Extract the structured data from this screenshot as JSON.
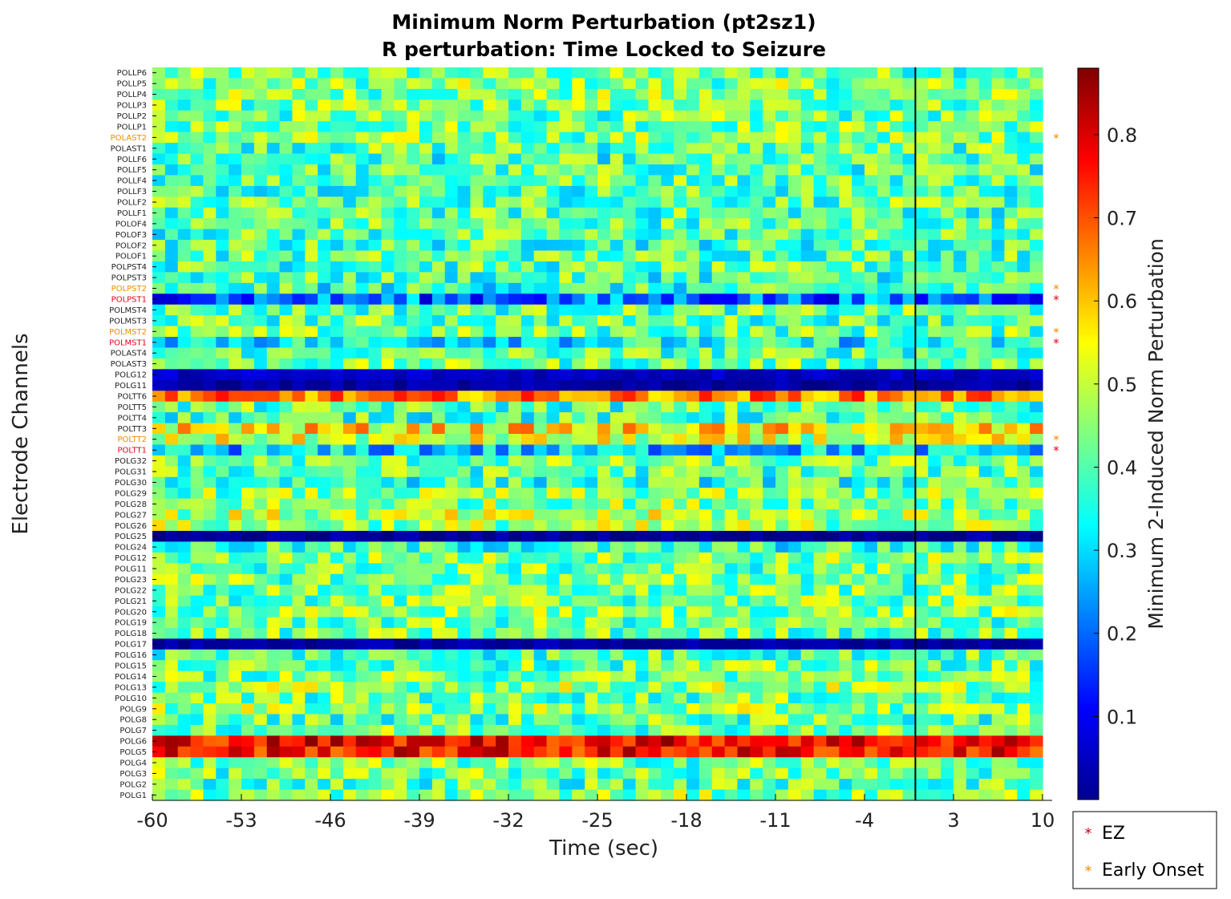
{
  "chart_data": {
    "type": "heatmap",
    "title": [
      "Minimum Norm Perturbation (pt2sz1)",
      "R perturbation:  Time Locked to Seizure"
    ],
    "xlabel": "Time (sec)",
    "ylabel": "Electrode Channels",
    "xlim": [
      -60,
      10
    ],
    "x_ticks": [
      -60,
      -53,
      -46,
      -39,
      -32,
      -25,
      -18,
      -11,
      -4,
      3,
      10
    ],
    "seizure_onset_time": 0,
    "colormap": "jet",
    "clim": [
      0,
      0.88
    ],
    "colorbar": {
      "label": "Minimum 2-Induced Norm Perturbation",
      "ticks": [
        0.1,
        0.2,
        0.3,
        0.4,
        0.5,
        0.6,
        0.7,
        0.8
      ]
    },
    "channels": [
      "POLLP6",
      "POLLP5",
      "POLLP4",
      "POLLP3",
      "POLLP2",
      "POLLP1",
      "POLAST2",
      "POLAST1",
      "POLLF6",
      "POLLF5",
      "POLLF4",
      "POLLF3",
      "POLLF2",
      "POLLF1",
      "POLOF4",
      "POLOF3",
      "POLOF2",
      "POLOF1",
      "POLPST4",
      "POLPST3",
      "POLPST2",
      "POLPST1",
      "POLMST4",
      "POLMST3",
      "POLMST2",
      "POLMST1",
      "POLAST4",
      "POLAST3",
      "POLG12",
      "POLG11",
      "POLTT6",
      "POLTT5",
      "POLTT4",
      "POLTT3",
      "POLTT2",
      "POLTT1",
      "POLG32",
      "POLG31",
      "POLG30",
      "POLG29",
      "POLG28",
      "POLG27",
      "POLG26",
      "POLG25",
      "POLG24",
      "POLG12",
      "POLG11",
      "POLG23",
      "POLG22",
      "POLG21",
      "POLG20",
      "POLG19",
      "POLG18",
      "POLG17",
      "POLG16",
      "POLG15",
      "POLG14",
      "POLG13",
      "POLG10",
      "POLG9",
      "POLG8",
      "POLG7",
      "POLG6",
      "POLG5",
      "POLG4",
      "POLG3",
      "POLG2",
      "POLG1"
    ],
    "channel_mean_values": [
      0.42,
      0.44,
      0.44,
      0.43,
      0.42,
      0.44,
      0.44,
      0.41,
      0.39,
      0.4,
      0.42,
      0.4,
      0.41,
      0.4,
      0.41,
      0.4,
      0.39,
      0.41,
      0.4,
      0.39,
      0.37,
      0.2,
      0.41,
      0.41,
      0.42,
      0.33,
      0.41,
      0.42,
      0.06,
      0.03,
      0.66,
      0.4,
      0.39,
      0.56,
      0.5,
      0.28,
      0.42,
      0.41,
      0.38,
      0.44,
      0.45,
      0.48,
      0.46,
      0.02,
      0.37,
      0.44,
      0.42,
      0.43,
      0.42,
      0.43,
      0.44,
      0.42,
      0.42,
      0.03,
      0.4,
      0.42,
      0.43,
      0.46,
      0.42,
      0.45,
      0.41,
      0.43,
      0.78,
      0.76,
      0.43,
      0.42,
      0.41,
      0.44
    ],
    "ez_channels": [
      "POLPST1",
      "POLMST1",
      "POLTT1"
    ],
    "early_onset_channels": [
      "POLAST2",
      "POLPST2",
      "POLMST2",
      "POLTT2"
    ],
    "legend": {
      "placement": "bottom-right outside",
      "entries": [
        {
          "label": "EZ",
          "marker": "*",
          "color": "#c0001f"
        },
        {
          "label": "Early Onset",
          "marker": "*",
          "color": "#f08c00"
        }
      ]
    },
    "colors": {
      "ez": "#e8001d",
      "early_onset": "#f08c00"
    }
  }
}
